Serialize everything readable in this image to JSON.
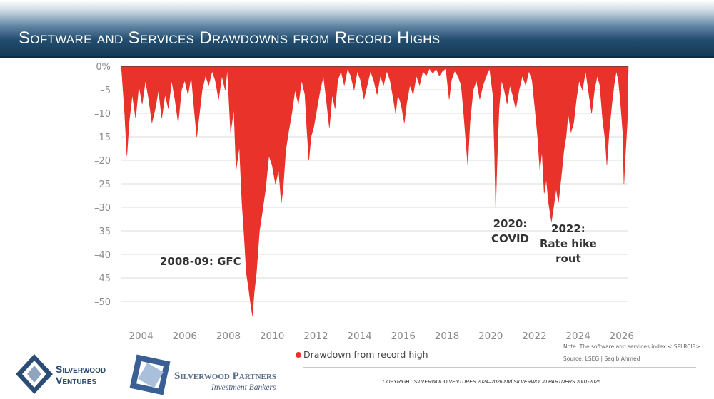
{
  "header": {
    "title": "Software and Services Drawdowns from Record Highs"
  },
  "chart_data": {
    "type": "area",
    "title": "Software and Services Drawdowns from Record Highs",
    "ylabel": "",
    "xlabel": "",
    "ylim": [
      -55,
      0
    ],
    "xlim": [
      2003.1,
      2026.3
    ],
    "y_ticks": [
      0,
      -5,
      -10,
      -15,
      -20,
      -25,
      -30,
      -35,
      -40,
      -45,
      -50
    ],
    "y_tick_labels": [
      "0%",
      "–5",
      "–10",
      "–15",
      "–20",
      "–25",
      "–30",
      "–35",
      "–40",
      "–45",
      "–50"
    ],
    "x_ticks": [
      2004,
      2006,
      2008,
      2010,
      2012,
      2014,
      2016,
      2018,
      2020,
      2022,
      2024,
      2026
    ],
    "x_tick_labels": [
      "2004",
      "2006",
      "2008",
      "2010",
      "2012",
      "2014",
      "2016",
      "2018",
      "2020",
      "2022",
      "2024",
      "2026"
    ],
    "grid": true,
    "series": [
      {
        "name": "Drawdown from record high",
        "color": "#e8322a",
        "points": [
          [
            2003.1,
            0
          ],
          [
            2003.25,
            -10
          ],
          [
            2003.35,
            -19
          ],
          [
            2003.45,
            -12
          ],
          [
            2003.6,
            -6
          ],
          [
            2003.75,
            -11
          ],
          [
            2003.9,
            -4
          ],
          [
            2004.05,
            -8
          ],
          [
            2004.2,
            -3
          ],
          [
            2004.35,
            -7
          ],
          [
            2004.5,
            -12
          ],
          [
            2004.65,
            -9
          ],
          [
            2004.8,
            -5
          ],
          [
            2004.95,
            -11
          ],
          [
            2005.1,
            -6
          ],
          [
            2005.25,
            -9
          ],
          [
            2005.4,
            -3
          ],
          [
            2005.55,
            -7
          ],
          [
            2005.7,
            -12
          ],
          [
            2005.85,
            -5
          ],
          [
            2006.0,
            -3
          ],
          [
            2006.15,
            -6
          ],
          [
            2006.3,
            -2
          ],
          [
            2006.45,
            -10
          ],
          [
            2006.55,
            -15
          ],
          [
            2006.65,
            -11
          ],
          [
            2006.8,
            -5
          ],
          [
            2006.95,
            -2
          ],
          [
            2007.1,
            -4
          ],
          [
            2007.25,
            -1
          ],
          [
            2007.4,
            -3
          ],
          [
            2007.55,
            -7
          ],
          [
            2007.7,
            -2
          ],
          [
            2007.85,
            -5
          ],
          [
            2007.95,
            -0.5
          ],
          [
            2008.1,
            -14
          ],
          [
            2008.25,
            -9
          ],
          [
            2008.35,
            -22
          ],
          [
            2008.5,
            -17
          ],
          [
            2008.62,
            -29
          ],
          [
            2008.72,
            -36
          ],
          [
            2008.82,
            -44
          ],
          [
            2008.92,
            -47
          ],
          [
            2009.0,
            -50
          ],
          [
            2009.1,
            -53
          ],
          [
            2009.18,
            -48
          ],
          [
            2009.28,
            -44
          ],
          [
            2009.42,
            -35
          ],
          [
            2009.55,
            -31
          ],
          [
            2009.7,
            -26
          ],
          [
            2009.85,
            -19
          ],
          [
            2010.0,
            -21
          ],
          [
            2010.15,
            -25
          ],
          [
            2010.3,
            -22
          ],
          [
            2010.42,
            -29
          ],
          [
            2010.5,
            -26
          ],
          [
            2010.62,
            -18
          ],
          [
            2010.75,
            -14
          ],
          [
            2010.9,
            -10
          ],
          [
            2011.05,
            -5
          ],
          [
            2011.2,
            -8
          ],
          [
            2011.35,
            -3
          ],
          [
            2011.5,
            -6
          ],
          [
            2011.6,
            -14
          ],
          [
            2011.68,
            -20
          ],
          [
            2011.78,
            -15
          ],
          [
            2011.9,
            -13
          ],
          [
            2012.05,
            -9
          ],
          [
            2012.2,
            -5
          ],
          [
            2012.35,
            -2
          ],
          [
            2012.5,
            -8
          ],
          [
            2012.62,
            -13
          ],
          [
            2012.75,
            -6
          ],
          [
            2012.88,
            -9
          ],
          [
            2013.0,
            -3
          ],
          [
            2013.15,
            -1
          ],
          [
            2013.3,
            -4
          ],
          [
            2013.45,
            -0.5
          ],
          [
            2013.6,
            -2
          ],
          [
            2013.75,
            -5
          ],
          [
            2013.9,
            -1
          ],
          [
            2014.05,
            -3
          ],
          [
            2014.2,
            -7
          ],
          [
            2014.35,
            -4
          ],
          [
            2014.5,
            -1
          ],
          [
            2014.65,
            -3
          ],
          [
            2014.8,
            -6
          ],
          [
            2014.95,
            -2
          ],
          [
            2015.1,
            -4
          ],
          [
            2015.25,
            -1
          ],
          [
            2015.4,
            -3
          ],
          [
            2015.55,
            -7
          ],
          [
            2015.65,
            -10
          ],
          [
            2015.75,
            -6
          ],
          [
            2015.9,
            -8
          ],
          [
            2016.05,
            -12
          ],
          [
            2016.15,
            -8
          ],
          [
            2016.3,
            -4
          ],
          [
            2016.45,
            -6
          ],
          [
            2016.6,
            -2
          ],
          [
            2016.75,
            -4
          ],
          [
            2016.9,
            -1
          ],
          [
            2017.05,
            -2
          ],
          [
            2017.2,
            -0.5
          ],
          [
            2017.35,
            -1.5
          ],
          [
            2017.5,
            -0.5
          ],
          [
            2017.65,
            -2
          ],
          [
            2017.8,
            -1
          ],
          [
            2017.95,
            -0.5
          ],
          [
            2018.1,
            -7
          ],
          [
            2018.2,
            -3
          ],
          [
            2018.35,
            -1
          ],
          [
            2018.5,
            -2
          ],
          [
            2018.65,
            -4
          ],
          [
            2018.75,
            -9
          ],
          [
            2018.85,
            -15
          ],
          [
            2018.95,
            -21
          ],
          [
            2019.05,
            -12
          ],
          [
            2019.2,
            -5
          ],
          [
            2019.35,
            -3
          ],
          [
            2019.5,
            -7
          ],
          [
            2019.65,
            -4
          ],
          [
            2019.8,
            -2
          ],
          [
            2019.95,
            -0.5
          ],
          [
            2020.1,
            -6
          ],
          [
            2020.18,
            -19
          ],
          [
            2020.23,
            -30
          ],
          [
            2020.28,
            -22
          ],
          [
            2020.38,
            -9
          ],
          [
            2020.5,
            -3
          ],
          [
            2020.62,
            -5
          ],
          [
            2020.75,
            -8
          ],
          [
            2020.88,
            -4
          ],
          [
            2021.0,
            -6
          ],
          [
            2021.15,
            -9
          ],
          [
            2021.3,
            -5
          ],
          [
            2021.45,
            -2
          ],
          [
            2021.6,
            -4
          ],
          [
            2021.75,
            -1
          ],
          [
            2021.9,
            -3
          ],
          [
            2022.05,
            -10
          ],
          [
            2022.15,
            -15
          ],
          [
            2022.25,
            -22
          ],
          [
            2022.35,
            -18
          ],
          [
            2022.45,
            -27
          ],
          [
            2022.55,
            -24
          ],
          [
            2022.65,
            -29
          ],
          [
            2022.78,
            -33
          ],
          [
            2022.88,
            -30
          ],
          [
            2023.0,
            -26
          ],
          [
            2023.1,
            -29
          ],
          [
            2023.22,
            -24
          ],
          [
            2023.35,
            -18
          ],
          [
            2023.45,
            -15
          ],
          [
            2023.55,
            -10
          ],
          [
            2023.68,
            -14
          ],
          [
            2023.8,
            -12
          ],
          [
            2023.92,
            -7
          ],
          [
            2024.05,
            -3
          ],
          [
            2024.2,
            -5
          ],
          [
            2024.35,
            -1
          ],
          [
            2024.5,
            -6
          ],
          [
            2024.62,
            -10
          ],
          [
            2024.75,
            -5
          ],
          [
            2024.88,
            -2
          ],
          [
            2025.0,
            -4
          ],
          [
            2025.12,
            -11
          ],
          [
            2025.25,
            -16
          ],
          [
            2025.32,
            -21
          ],
          [
            2025.42,
            -14
          ],
          [
            2025.55,
            -8
          ],
          [
            2025.65,
            -4
          ],
          [
            2025.75,
            -1
          ],
          [
            2025.85,
            -3
          ],
          [
            2025.95,
            -8
          ],
          [
            2026.05,
            -14
          ],
          [
            2026.1,
            -25
          ],
          [
            2026.15,
            -20
          ],
          [
            2026.25,
            -12
          ],
          [
            2026.3,
            0
          ]
        ]
      }
    ],
    "annotations": [
      {
        "id": "gfc",
        "lines": [
          "2008-09: GFC"
        ],
        "x": 2007.45,
        "y": -41.5
      },
      {
        "id": "covid",
        "lines": [
          "2020:",
          "COVID"
        ],
        "x": 2020.7,
        "y": -35
      },
      {
        "id": "rate",
        "lines": [
          "2022:",
          "Rate hike",
          "rout"
        ],
        "x": 2022.95,
        "y": -37.5
      }
    ],
    "legend": {
      "position": "bottom-center",
      "label": "Drawdown from record high"
    }
  },
  "annotation_text": {
    "gfc": "2008-09: GFC",
    "covid_1": "2020:",
    "covid_2": "COVID",
    "rate_1": "2022:",
    "rate_2": "Rate hike",
    "rate_3": "rout"
  },
  "notes": {
    "line1": "Note: The software and services index <.SPLRCIS>",
    "line2": "Source: LSEG | Saqib Ahmed"
  },
  "footer": {
    "copyright": "COPYRIGHT SILVERWOOD VENTURES 2024–2026 and SILVERWOOD PARTNERS 2001-2026",
    "logo1_line1": "Silverwood",
    "logo1_line2": "Ventures",
    "logo2_name": "Silverwood Partners",
    "logo2_sub": "Investment Bankers"
  },
  "colors": {
    "series": "#e8322a",
    "title_bar": "#1f4b6e",
    "logo_blue": "#2b4c74"
  }
}
